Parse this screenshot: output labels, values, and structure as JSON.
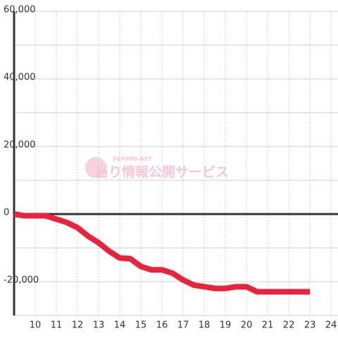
{
  "chart_data": {
    "type": "line",
    "watermark_small": "PAPIMO-NET",
    "watermark": "当り情報公開サービス",
    "x": [
      9,
      9.5,
      10,
      10.5,
      11,
      11.5,
      12,
      12.5,
      13,
      13.5,
      14,
      14.5,
      15,
      15.5,
      16,
      16.5,
      17,
      17.5,
      18,
      18.5,
      19,
      19.5,
      20,
      20.5,
      21,
      21.5,
      22,
      22.5,
      23
    ],
    "series": [
      {
        "color": "#e8243c",
        "values": [
          0,
          -500,
          -500,
          -500,
          -1500,
          -2500,
          -4000,
          -6500,
          -8500,
          -11000,
          -13000,
          -13200,
          -15500,
          -16500,
          -16500,
          -17500,
          -19500,
          -21000,
          -21500,
          -22000,
          -22000,
          -21500,
          -21500,
          -23000,
          -23000,
          -23000,
          -23000,
          -23000,
          -23000
        ]
      }
    ],
    "xlim": [
      9,
      24.33
    ],
    "xticks": [
      10,
      11,
      12,
      13,
      14,
      15,
      16,
      17,
      18,
      19,
      20,
      21,
      22,
      23,
      24
    ],
    "ylim": [
      -30000,
      60000
    ],
    "yticks": [
      {
        "value": 60000,
        "label": "60,000"
      },
      {
        "value": 40000,
        "label": "40,000"
      },
      {
        "value": 20000,
        "label": "20,000"
      },
      0,
      {
        "value": -20000,
        "label": "-20,000"
      }
    ],
    "y_minor_ticks": [
      50000,
      30000,
      10000,
      -10000,
      -30000
    ],
    "grid": true
  }
}
